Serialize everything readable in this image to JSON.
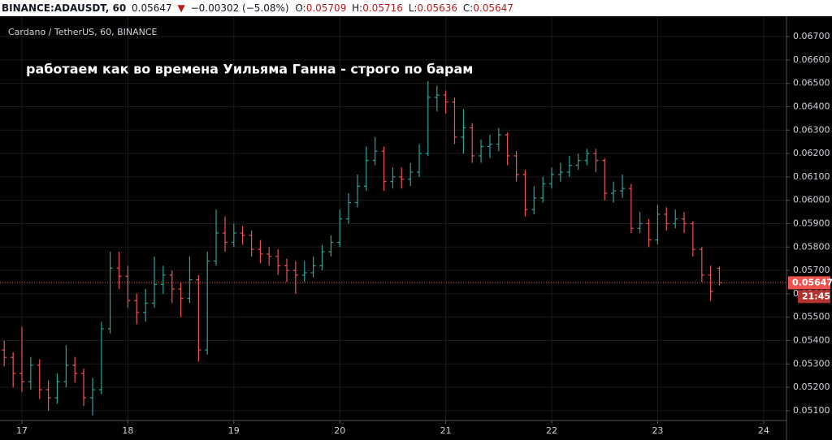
{
  "chart_data": {
    "type": "ohlc",
    "symbol": "BINANCE:ADAUSDT, 60",
    "change": "−0.00302 (−5.08%)",
    "change_arrow": "▼",
    "ohlc_labels": [
      "O:",
      "H:",
      "L:",
      "C:"
    ],
    "subtitle": "Cardano / TetherUS, 60, BINANCE",
    "annotation": "работаем как во времена Уильяма Ганна - строго по барам",
    "countdown": "21:45",
    "up_color": "#26a69a",
    "down_color": "#ef5350",
    "grid": true,
    "xlim": [
      16.793,
      24.216
    ],
    "xticks": [
      17,
      18,
      19,
      20,
      21,
      22,
      23,
      24
    ],
    "ylim": [
      0.05058,
      0.06787
    ],
    "yticks": [
      {
        "value": 0.051,
        "label": "0.05100"
      },
      {
        "value": 0.052,
        "label": "0.05200"
      },
      {
        "value": 0.053,
        "label": "0.05300"
      },
      {
        "value": 0.054,
        "label": "0.05400"
      },
      {
        "value": 0.055,
        "label": "0.05500"
      },
      {
        "value": 0.056,
        "label": "0.05600"
      },
      {
        "value": 0.057,
        "label": "0.05700"
      },
      {
        "value": 0.058,
        "label": "0.05800"
      },
      {
        "value": 0.059,
        "label": "0.05900"
      },
      {
        "value": 0.06,
        "label": "0.06000"
      },
      {
        "value": 0.061,
        "label": "0.06100"
      },
      {
        "value": 0.062,
        "label": "0.06200"
      },
      {
        "value": 0.063,
        "label": "0.06300"
      },
      {
        "value": 0.064,
        "label": "0.06400"
      },
      {
        "value": 0.065,
        "label": "0.06500"
      },
      {
        "value": 0.066,
        "label": "0.06600"
      },
      {
        "value": 0.067,
        "label": "0.06700"
      }
    ],
    "x": [
      16.833,
      16.917,
      17,
      17.083,
      17.167,
      17.25,
      17.333,
      17.417,
      17.5,
      17.583,
      17.667,
      17.75,
      17.833,
      17.917,
      18,
      18.083,
      18.167,
      18.25,
      18.333,
      18.417,
      18.5,
      18.583,
      18.667,
      18.75,
      18.833,
      18.917,
      19,
      19.083,
      19.167,
      19.25,
      19.333,
      19.417,
      19.5,
      19.583,
      19.667,
      19.75,
      19.833,
      19.917,
      20,
      20.083,
      20.167,
      20.25,
      20.333,
      20.417,
      20.5,
      20.583,
      20.667,
      20.75,
      20.833,
      20.917,
      21,
      21.083,
      21.167,
      21.25,
      21.333,
      21.417,
      21.5,
      21.583,
      21.667,
      21.75,
      21.833,
      21.917,
      22,
      22.083,
      22.167,
      22.25,
      22.333,
      22.417,
      22.5,
      22.583,
      22.667,
      22.75,
      22.833,
      22.917,
      23,
      23.083,
      23.167,
      23.25,
      23.333,
      23.417,
      23.5,
      23.583
    ],
    "open": [
      0.0536,
      0.05328,
      0.05259,
      0.05224,
      0.05294,
      0.0519,
      0.05155,
      0.05224,
      0.05294,
      0.05259,
      0.05155,
      0.0519,
      0.0545,
      0.0571,
      0.05675,
      0.05571,
      0.0552,
      0.0556,
      0.0564,
      0.0568,
      0.0562,
      0.0558,
      0.0566,
      0.0536,
      0.0574,
      0.0586,
      0.0582,
      0.0586,
      0.0585,
      0.0579,
      0.0577,
      0.0576,
      0.0572,
      0.057,
      0.0568,
      0.0569,
      0.0572,
      0.0578,
      0.0582,
      0.0592,
      0.0599,
      0.0606,
      0.0617,
      0.0621,
      0.0608,
      0.061,
      0.0609,
      0.0612,
      0.062,
      0.0644,
      0.0645,
      0.0642,
      0.0627,
      0.0631,
      0.0619,
      0.0623,
      0.0624,
      0.0628,
      0.0619,
      0.0611,
      0.0596,
      0.0601,
      0.0607,
      0.0611,
      0.0612,
      0.0615,
      0.0617,
      0.062,
      0.0617,
      0.0603,
      0.0604,
      0.0605,
      0.0588,
      0.059,
      0.0583,
      0.0594,
      0.059,
      0.0592,
      0.059,
      0.0579,
      0.0568,
      0.05709
    ],
    "high": [
      0.054,
      0.0535,
      0.0546,
      0.0533,
      0.0532,
      0.0523,
      0.0526,
      0.0538,
      0.0533,
      0.0528,
      0.0524,
      0.0548,
      0.0578,
      0.0578,
      0.0572,
      0.056,
      0.0562,
      0.0576,
      0.0572,
      0.057,
      0.0565,
      0.0576,
      0.0568,
      0.0578,
      0.0596,
      0.0593,
      0.059,
      0.0589,
      0.0587,
      0.0583,
      0.058,
      0.0579,
      0.0575,
      0.0574,
      0.0574,
      0.0576,
      0.0581,
      0.0585,
      0.0596,
      0.0603,
      0.0611,
      0.0623,
      0.0627,
      0.0623,
      0.0614,
      0.0614,
      0.0616,
      0.0624,
      0.0651,
      0.0649,
      0.0647,
      0.0644,
      0.0639,
      0.0633,
      0.0626,
      0.0628,
      0.0631,
      0.0629,
      0.0621,
      0.0613,
      0.0606,
      0.061,
      0.0614,
      0.0616,
      0.0619,
      0.062,
      0.0622,
      0.0622,
      0.0618,
      0.0608,
      0.0611,
      0.0607,
      0.0595,
      0.0592,
      0.0598,
      0.0597,
      0.0596,
      0.0595,
      0.0591,
      0.058,
      0.0572,
      0.05716
    ],
    "low": [
      0.0529,
      0.052,
      0.0518,
      0.0519,
      0.0515,
      0.051,
      0.0513,
      0.052,
      0.0522,
      0.0512,
      0.0508,
      0.0517,
      0.0543,
      0.0562,
      0.0554,
      0.0547,
      0.0548,
      0.0554,
      0.056,
      0.0556,
      0.055,
      0.0556,
      0.0531,
      0.0534,
      0.0572,
      0.0578,
      0.058,
      0.0581,
      0.0576,
      0.0573,
      0.0572,
      0.0568,
      0.0565,
      0.056,
      0.0565,
      0.0567,
      0.057,
      0.0576,
      0.058,
      0.059,
      0.0597,
      0.0604,
      0.0615,
      0.0604,
      0.0605,
      0.0605,
      0.0606,
      0.061,
      0.0619,
      0.0638,
      0.0637,
      0.0624,
      0.062,
      0.0616,
      0.0616,
      0.0618,
      0.0621,
      0.0615,
      0.0608,
      0.0593,
      0.0594,
      0.0599,
      0.0605,
      0.0608,
      0.061,
      0.0613,
      0.0615,
      0.0612,
      0.06,
      0.0599,
      0.0601,
      0.0586,
      0.0586,
      0.058,
      0.0581,
      0.0587,
      0.0588,
      0.0586,
      0.0576,
      0.0565,
      0.0557,
      0.05636
    ],
    "close": [
      0.05328,
      0.05259,
      0.05224,
      0.05294,
      0.0519,
      0.05155,
      0.05224,
      0.05294,
      0.05259,
      0.05155,
      0.0519,
      0.0545,
      0.0571,
      0.05675,
      0.05571,
      0.0552,
      0.0556,
      0.0564,
      0.0568,
      0.0562,
      0.0558,
      0.0566,
      0.0536,
      0.0574,
      0.0586,
      0.0582,
      0.0586,
      0.0585,
      0.0579,
      0.0577,
      0.0576,
      0.0572,
      0.057,
      0.0568,
      0.0569,
      0.0572,
      0.0578,
      0.0582,
      0.0592,
      0.0599,
      0.0606,
      0.0617,
      0.0621,
      0.0608,
      0.061,
      0.0609,
      0.0612,
      0.062,
      0.0644,
      0.0645,
      0.0642,
      0.0627,
      0.0631,
      0.0619,
      0.0623,
      0.0624,
      0.0628,
      0.0619,
      0.0611,
      0.0596,
      0.0601,
      0.0607,
      0.0611,
      0.0612,
      0.0615,
      0.0617,
      0.062,
      0.0617,
      0.0603,
      0.0604,
      0.0605,
      0.0588,
      0.059,
      0.0583,
      0.0594,
      0.059,
      0.0592,
      0.059,
      0.0579,
      0.0568,
      0.0561,
      0.05647
    ]
  }
}
